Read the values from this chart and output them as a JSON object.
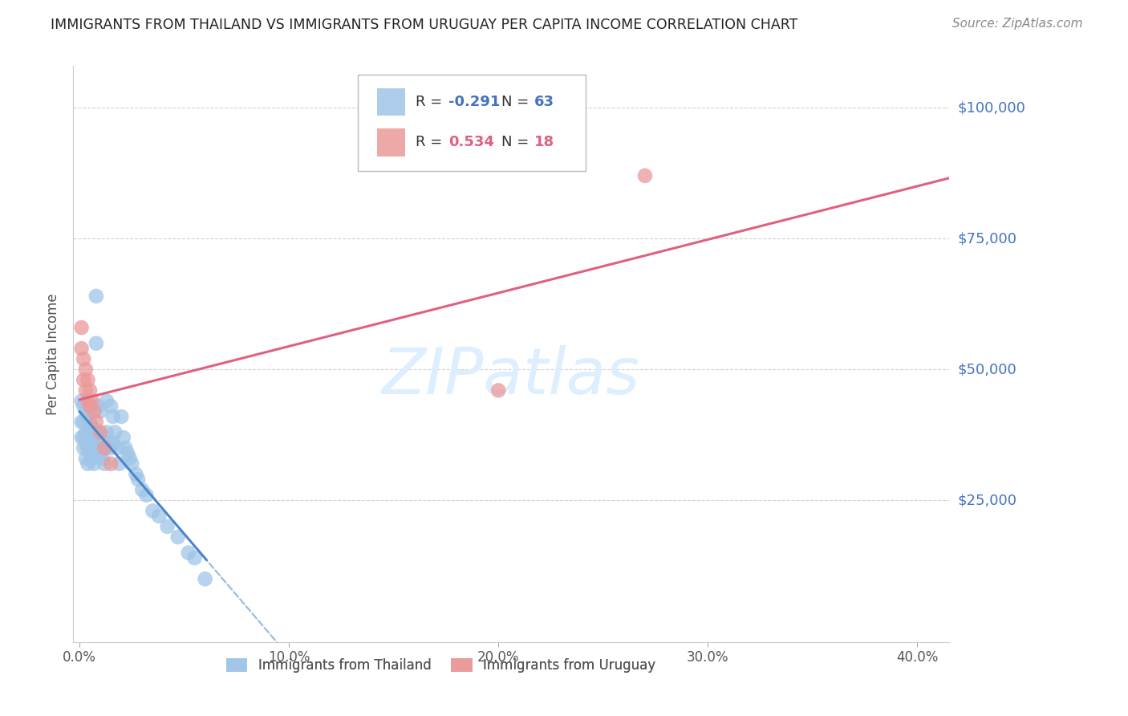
{
  "title": "IMMIGRANTS FROM THAILAND VS IMMIGRANTS FROM URUGUAY PER CAPITA INCOME CORRELATION CHART",
  "source": "Source: ZipAtlas.com",
  "ylabel": "Per Capita Income",
  "xlabel_ticks": [
    "0.0%",
    "10.0%",
    "20.0%",
    "30.0%",
    "40.0%"
  ],
  "xlabel_vals": [
    0.0,
    0.1,
    0.2,
    0.3,
    0.4
  ],
  "ytick_labels": [
    "$25,000",
    "$50,000",
    "$75,000",
    "$100,000"
  ],
  "ytick_vals": [
    25000,
    50000,
    75000,
    100000
  ],
  "ylim": [
    -2000,
    108000
  ],
  "xlim": [
    -0.003,
    0.415
  ],
  "thailand_R": -0.291,
  "thailand_N": 63,
  "uruguay_R": 0.534,
  "uruguay_N": 18,
  "thailand_color": "#9fc5e8",
  "uruguay_color": "#ea9999",
  "thailand_line_color": "#4a86c8",
  "uruguay_line_color": "#e06080",
  "watermark_color": "#ddeeff",
  "title_color": "#222222",
  "source_color": "#888888",
  "legend_label_thailand": "Immigrants from Thailand",
  "legend_label_uruguay": "Immigrants from Uruguay",
  "thai_R_color": "#4472c4",
  "thai_N_color": "#4472c4",
  "uru_R_color": "#e06080",
  "uru_N_color": "#e06080",
  "thailand_x": [
    0.001,
    0.001,
    0.001,
    0.002,
    0.002,
    0.002,
    0.002,
    0.003,
    0.003,
    0.003,
    0.003,
    0.004,
    0.004,
    0.004,
    0.004,
    0.005,
    0.005,
    0.005,
    0.006,
    0.006,
    0.006,
    0.007,
    0.007,
    0.007,
    0.008,
    0.008,
    0.008,
    0.009,
    0.009,
    0.01,
    0.01,
    0.01,
    0.011,
    0.011,
    0.012,
    0.012,
    0.013,
    0.013,
    0.014,
    0.015,
    0.015,
    0.016,
    0.016,
    0.017,
    0.018,
    0.019,
    0.02,
    0.021,
    0.022,
    0.023,
    0.024,
    0.025,
    0.027,
    0.028,
    0.03,
    0.032,
    0.035,
    0.038,
    0.042,
    0.047,
    0.052,
    0.055,
    0.06
  ],
  "thailand_y": [
    44000,
    40000,
    37000,
    43000,
    40000,
    37000,
    35000,
    42000,
    38000,
    36000,
    33000,
    41000,
    38000,
    35000,
    32000,
    40000,
    37000,
    34000,
    39000,
    36000,
    33000,
    38000,
    35000,
    32000,
    64000,
    55000,
    34000,
    43000,
    38000,
    42000,
    37000,
    34000,
    36000,
    33000,
    35000,
    32000,
    44000,
    38000,
    36000,
    43000,
    35000,
    41000,
    36000,
    38000,
    35000,
    32000,
    41000,
    37000,
    35000,
    34000,
    33000,
    32000,
    30000,
    29000,
    27000,
    26000,
    23000,
    22000,
    20000,
    18000,
    15000,
    14000,
    10000
  ],
  "uruguay_x": [
    0.001,
    0.001,
    0.002,
    0.002,
    0.003,
    0.003,
    0.004,
    0.004,
    0.005,
    0.005,
    0.006,
    0.007,
    0.008,
    0.01,
    0.012,
    0.015,
    0.2,
    0.27
  ],
  "uruguay_y": [
    58000,
    54000,
    52000,
    48000,
    50000,
    46000,
    48000,
    44000,
    46000,
    43000,
    44000,
    42000,
    40000,
    38000,
    35000,
    32000,
    46000,
    87000
  ],
  "thai_line_solid_end": 0.06,
  "thai_line_x_start": 0.0,
  "thai_line_x_end": 0.415,
  "uru_line_x_start": 0.0,
  "uru_line_x_end": 0.415
}
